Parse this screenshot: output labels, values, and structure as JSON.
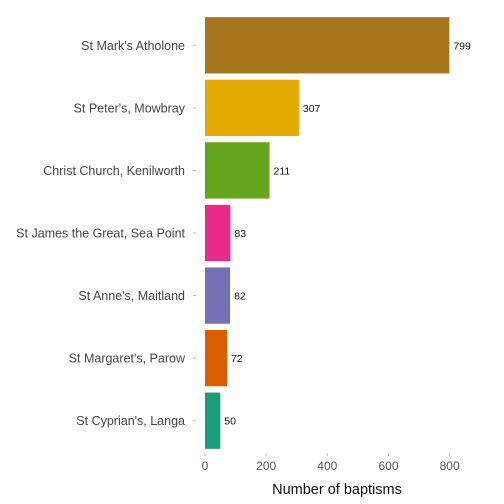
{
  "chart_data": {
    "type": "bar",
    "orientation": "horizontal",
    "categories": [
      "St Mark's Atholone",
      "St Peter's, Mowbray",
      "Christ Church, Kenilworth",
      "St James the Great, Sea Point",
      "St Anne's, Maitland",
      "St Margaret's, Parow",
      "St Cyprian's, Langa"
    ],
    "values": [
      799,
      307,
      211,
      83,
      82,
      72,
      50
    ],
    "colors": [
      "#A6761D",
      "#E6AB02",
      "#66A61E",
      "#E7298A",
      "#7570B3",
      "#D95F02",
      "#1B9E77"
    ],
    "xlabel": "Number of baptisms",
    "ylabel": "",
    "xlim": [
      0,
      860
    ],
    "xticks": [
      0,
      200,
      400,
      600,
      800
    ],
    "grid": false,
    "legend": "none",
    "data_labels": true
  }
}
